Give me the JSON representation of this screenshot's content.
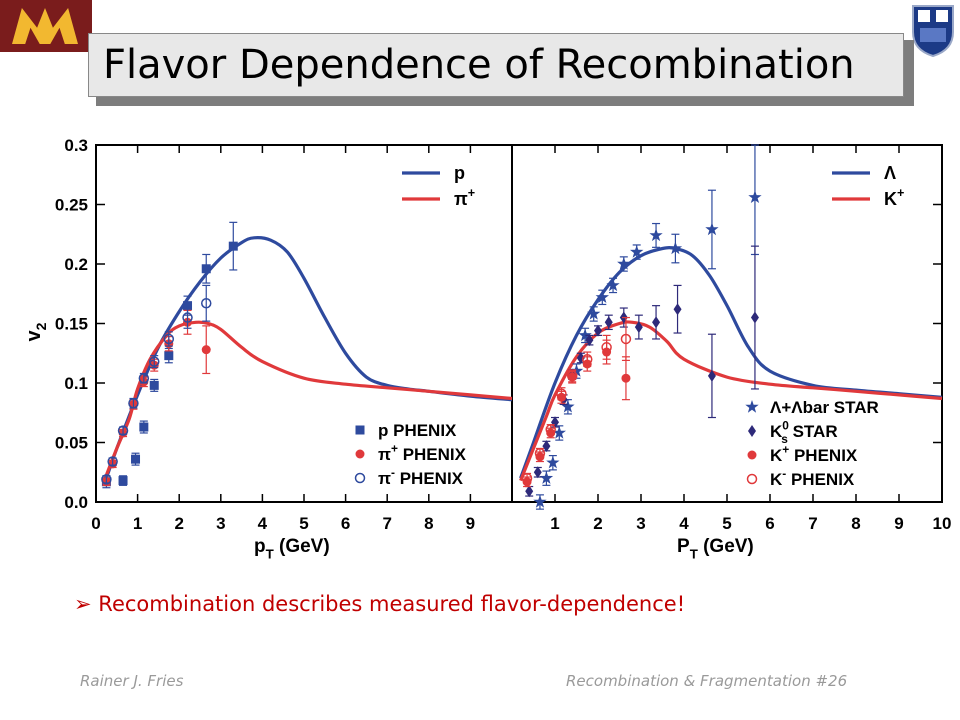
{
  "slide": {
    "title": "Flavor Dependence of Recombination",
    "bullet": "Recombination describes measured flavor-dependence!",
    "footer_author": "Rainer J. Fries",
    "footer_talk": "Recombination & Fragmentation",
    "footer_page": "#26"
  },
  "colors": {
    "blue": "#2e4a9e",
    "red": "#e0393b",
    "title_bar": "#e8e8e8",
    "bullet": "#c00000"
  },
  "chart_data": [
    {
      "type": "line",
      "panel": "left",
      "xlabel": "p",
      "xlabel_sub": "T",
      "xlabel_unit": " (GeV)",
      "ylabel": "v",
      "ylabel_sub": "2",
      "xlim": [
        0,
        10
      ],
      "ylim": [
        0,
        0.3
      ],
      "xticks": [
        0,
        1,
        2,
        3,
        4,
        5,
        6,
        7,
        8,
        9
      ],
      "yticks": [
        "0.0",
        "0.05",
        "0.1",
        "0.15",
        "0.2",
        "0.25",
        "0.3"
      ],
      "ytick_values": [
        0,
        0.05,
        0.1,
        0.15,
        0.2,
        0.25,
        0.3
      ],
      "legend_lines": [
        {
          "label": "p",
          "sup": "",
          "color": "#2e4a9e"
        },
        {
          "label": "π",
          "sup": "+",
          "color": "#e0393b"
        }
      ],
      "series": [
        {
          "name": "p",
          "kind": "curve",
          "color": "#2e4a9e",
          "x": [
            0.2,
            0.5,
            1,
            1.5,
            2,
            2.5,
            3,
            3.5,
            3.8,
            4.2,
            4.6,
            5,
            5.5,
            6,
            6.5,
            7,
            7.5,
            8,
            9,
            10
          ],
          "y": [
            0.015,
            0.045,
            0.09,
            0.13,
            0.16,
            0.185,
            0.205,
            0.218,
            0.222,
            0.22,
            0.21,
            0.188,
            0.155,
            0.125,
            0.105,
            0.098,
            0.095,
            0.093,
            0.089,
            0.086
          ]
        },
        {
          "name": "π",
          "kind": "curve",
          "color": "#e0393b",
          "x": [
            0.2,
            0.5,
            0.8,
            1,
            1.3,
            1.7,
            2,
            2.4,
            2.7,
            3,
            3.5,
            4,
            5,
            6,
            7,
            8,
            9,
            10
          ],
          "y": [
            0.018,
            0.045,
            0.07,
            0.095,
            0.12,
            0.14,
            0.148,
            0.151,
            0.15,
            0.145,
            0.13,
            0.118,
            0.104,
            0.099,
            0.096,
            0.093,
            0.09,
            0.087
          ]
        },
        {
          "name": "p PHENIX",
          "kind": "points",
          "marker": "square",
          "color": "#2e4a9e",
          "x": [
            0.25,
            0.65,
            0.95,
            1.15,
            1.4,
            1.75,
            2.2,
            2.65,
            3.3
          ],
          "y": [
            0.017,
            0.018,
            0.036,
            0.063,
            0.098,
            0.123,
            0.165,
            0.196,
            0.215
          ],
          "err": [
            0.005,
            0.004,
            0.005,
            0.005,
            0.005,
            0.006,
            0.008,
            0.012,
            0.02
          ]
        },
        {
          "name": "π+ PHENIX",
          "kind": "points",
          "marker": "circle",
          "color": "#e0393b",
          "x": [
            0.25,
            0.4,
            0.65,
            0.9,
            1.15,
            1.4,
            1.75,
            2.2,
            2.65
          ],
          "y": [
            0.017,
            0.032,
            0.058,
            0.082,
            0.101,
            0.115,
            0.133,
            0.151,
            0.128
          ],
          "err": [
            0.003,
            0.003,
            0.003,
            0.004,
            0.004,
            0.005,
            0.006,
            0.01,
            0.02
          ]
        },
        {
          "name": "π− PHENIX",
          "kind": "points",
          "marker": "open-circle",
          "color": "#2e4a9e",
          "x": [
            0.25,
            0.4,
            0.65,
            0.9,
            1.15,
            1.4,
            1.75,
            2.2,
            2.65
          ],
          "y": [
            0.019,
            0.034,
            0.06,
            0.083,
            0.104,
            0.118,
            0.137,
            0.155,
            0.167
          ],
          "err": [
            0.003,
            0.003,
            0.003,
            0.004,
            0.004,
            0.005,
            0.006,
            0.009,
            0.015
          ]
        }
      ],
      "legend_points": [
        {
          "label": "p PHENIX",
          "sup": "",
          "marker": "square",
          "color": "#2e4a9e"
        },
        {
          "label": "π",
          "sup": "+",
          "rest": " PHENIX",
          "marker": "circle",
          "color": "#e0393b"
        },
        {
          "label": "π",
          "sup": "-",
          "rest": " PHENIX",
          "marker": "open-circle",
          "color": "#2e4a9e"
        }
      ]
    },
    {
      "type": "line",
      "panel": "right",
      "xlabel": "P",
      "xlabel_sub": "T",
      "xlabel_unit": " (GeV)",
      "xlim": [
        0,
        10
      ],
      "ylim": [
        0,
        0.3
      ],
      "xticks": [
        1,
        2,
        3,
        4,
        5,
        6,
        7,
        8,
        9,
        10
      ],
      "legend_lines": [
        {
          "label": "Λ",
          "sup": "",
          "color": "#2e4a9e"
        },
        {
          "label": "K",
          "sup": "+",
          "color": "#e0393b"
        }
      ],
      "series": [
        {
          "name": "Λ",
          "kind": "curve",
          "color": "#2e4a9e",
          "x": [
            0.2,
            0.5,
            1,
            1.5,
            2,
            2.5,
            3,
            3.5,
            3.8,
            4.2,
            4.6,
            5,
            5.5,
            6,
            7,
            8,
            9,
            10
          ],
          "y": [
            0.02,
            0.05,
            0.1,
            0.14,
            0.17,
            0.193,
            0.207,
            0.213,
            0.213,
            0.207,
            0.19,
            0.165,
            0.13,
            0.11,
            0.098,
            0.094,
            0.091,
            0.088
          ]
        },
        {
          "name": "K+",
          "kind": "curve",
          "color": "#e0393b",
          "x": [
            0.2,
            0.5,
            0.8,
            1,
            1.5,
            2,
            2.5,
            2.8,
            3.2,
            3.6,
            4,
            5,
            6,
            7,
            8,
            9,
            10
          ],
          "y": [
            0.018,
            0.045,
            0.072,
            0.09,
            0.122,
            0.142,
            0.15,
            0.151,
            0.147,
            0.135,
            0.12,
            0.105,
            0.099,
            0.096,
            0.093,
            0.09,
            0.087
          ]
        },
        {
          "name": "Λ+Λbar STAR",
          "kind": "points",
          "marker": "star",
          "color": "#2e4a9e",
          "x": [
            0.65,
            0.8,
            0.95,
            1.1,
            1.3,
            1.5,
            1.7,
            1.9,
            2.1,
            2.35,
            2.6,
            2.9,
            3.35,
            3.8,
            4.65,
            5.65
          ],
          "y": [
            0.0,
            0.02,
            0.033,
            0.058,
            0.08,
            0.11,
            0.14,
            0.158,
            0.172,
            0.182,
            0.2,
            0.21,
            0.224,
            0.213,
            0.229,
            0.256
          ],
          "err": [
            0.006,
            0.006,
            0.006,
            0.006,
            0.006,
            0.006,
            0.006,
            0.006,
            0.006,
            0.006,
            0.006,
            0.006,
            0.01,
            0.012,
            0.033,
            0.048
          ]
        },
        {
          "name": "K0s STAR",
          "kind": "points",
          "marker": "diamond",
          "color": "#2e2a7a",
          "x": [
            0.4,
            0.6,
            0.8,
            1.0,
            1.2,
            1.4,
            1.6,
            1.8,
            2.0,
            2.25,
            2.6,
            2.95,
            3.35,
            3.85,
            4.65,
            5.65
          ],
          "y": [
            0.009,
            0.025,
            0.047,
            0.067,
            0.086,
            0.107,
            0.121,
            0.136,
            0.144,
            0.151,
            0.155,
            0.147,
            0.151,
            0.162,
            0.106,
            0.155
          ],
          "err": [
            0.004,
            0.004,
            0.004,
            0.004,
            0.004,
            0.004,
            0.004,
            0.004,
            0.004,
            0.006,
            0.008,
            0.01,
            0.014,
            0.02,
            0.035,
            0.06
          ]
        },
        {
          "name": "K+ PHENIX",
          "kind": "points",
          "marker": "circle",
          "color": "#e0393b",
          "x": [
            0.35,
            0.65,
            0.9,
            1.15,
            1.4,
            1.75,
            2.2,
            2.65
          ],
          "y": [
            0.017,
            0.038,
            0.058,
            0.088,
            0.105,
            0.116,
            0.126,
            0.104
          ],
          "err": [
            0.004,
            0.004,
            0.004,
            0.005,
            0.005,
            0.006,
            0.01,
            0.018
          ]
        },
        {
          "name": "K− PHENIX",
          "kind": "points",
          "marker": "open-circle",
          "color": "#e0393b",
          "x": [
            0.35,
            0.65,
            0.9,
            1.15,
            1.4,
            1.75,
            2.2,
            2.65
          ],
          "y": [
            0.02,
            0.041,
            0.061,
            0.091,
            0.106,
            0.12,
            0.13,
            0.137
          ],
          "err": [
            0.004,
            0.004,
            0.004,
            0.005,
            0.005,
            0.006,
            0.01,
            0.018
          ]
        }
      ],
      "legend_points": [
        {
          "label": "Λ+Λbar STAR",
          "sup": "",
          "sub": "",
          "marker": "star",
          "color": "#2e4a9e"
        },
        {
          "label": "K",
          "sup": "0",
          "sub": "s",
          "rest": " STAR",
          "marker": "diamond",
          "color": "#2e2a7a"
        },
        {
          "label": "K",
          "sup": "+",
          "sub": "",
          "rest": " PHENIX",
          "marker": "circle",
          "color": "#e0393b"
        },
        {
          "label": "K",
          "sup": "-",
          "sub": "",
          "rest": " PHENIX",
          "marker": "open-circle",
          "color": "#e0393b"
        }
      ]
    }
  ]
}
